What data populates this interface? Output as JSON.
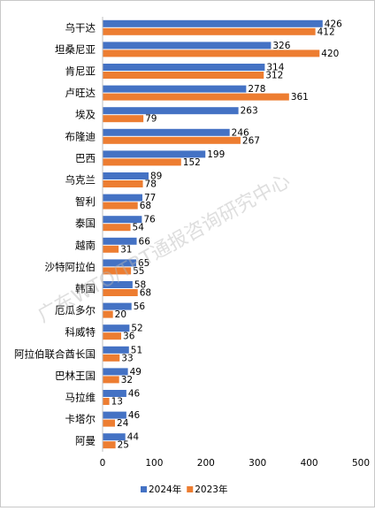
{
  "chart_data": {
    "type": "bar",
    "orientation": "horizontal",
    "categories": [
      "乌干达",
      "坦桑尼亚",
      "肯尼亚",
      "卢旺达",
      "埃及",
      "布隆迪",
      "巴西",
      "乌克兰",
      "智利",
      "泰国",
      "越南",
      "沙特阿拉伯",
      "韩国",
      "厄瓜多尔",
      "科威特",
      "阿拉伯联合酋长国",
      "巴林王国",
      "马拉维",
      "卡塔尔",
      "阿曼"
    ],
    "series": [
      {
        "name": "2024年",
        "color": "#4472c4",
        "values": [
          426,
          326,
          314,
          278,
          263,
          246,
          199,
          89,
          77,
          76,
          66,
          65,
          58,
          56,
          52,
          51,
          49,
          46,
          46,
          44
        ]
      },
      {
        "name": "2023年",
        "color": "#ed7d31",
        "values": [
          412,
          420,
          312,
          361,
          79,
          267,
          152,
          78,
          68,
          54,
          31,
          55,
          68,
          20,
          36,
          33,
          32,
          13,
          24,
          25
        ]
      }
    ],
    "xlim": [
      0,
      500
    ],
    "xticks": [
      0,
      100,
      200,
      300,
      400,
      500
    ],
    "grid": false,
    "legend_position": "bottom"
  },
  "watermark": "广东WTO/TBT通报咨询研究中心"
}
